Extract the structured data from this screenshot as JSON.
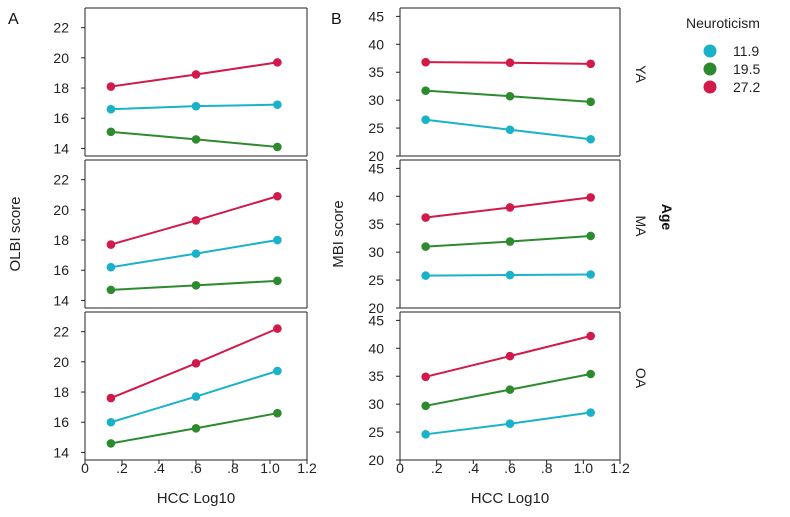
{
  "chart_data": {
    "type": "line",
    "xlabel": "HCC Log10",
    "x_ticks": [
      "0",
      ".2",
      ".4",
      ".6",
      ".8",
      "1.0",
      "1.2"
    ],
    "xlim": [
      0,
      1.2
    ],
    "x": [
      0.14,
      0.6,
      1.04
    ],
    "colors": {
      "11.9": "#1ab2c9",
      "19.5": "#2e8a2e",
      "27.2": "#d11a4a"
    },
    "legend": {
      "title": "Neuroticism",
      "entries": [
        "11.9",
        "19.5",
        "27.2"
      ]
    },
    "facet_label": "Age",
    "row_labels": [
      "YA",
      "MA",
      "OA"
    ],
    "panel_letters": [
      "A",
      "B"
    ],
    "panels": [
      {
        "letter": "A",
        "ylabel": "OLBI score",
        "ylim": [
          13.5,
          23.3
        ],
        "rows": [
          {
            "row": "YA",
            "y_ticks": [
              14,
              16,
              18,
              20,
              22
            ],
            "series": [
              {
                "name": "11.9",
                "values": [
                  16.6,
                  16.8,
                  16.9
                ]
              },
              {
                "name": "19.5",
                "values": [
                  15.1,
                  14.6,
                  14.1
                ]
              },
              {
                "name": "27.2",
                "values": [
                  18.1,
                  18.9,
                  19.7
                ]
              }
            ]
          },
          {
            "row": "MA",
            "y_ticks": [
              14,
              16,
              18,
              20,
              22
            ],
            "series": [
              {
                "name": "11.9",
                "values": [
                  16.2,
                  17.1,
                  18.0
                ]
              },
              {
                "name": "19.5",
                "values": [
                  14.7,
                  15.0,
                  15.3
                ]
              },
              {
                "name": "27.2",
                "values": [
                  17.7,
                  19.3,
                  20.9
                ]
              }
            ]
          },
          {
            "row": "OA",
            "y_ticks": [
              14,
              16,
              18,
              20,
              22
            ],
            "series": [
              {
                "name": "11.9",
                "values": [
                  16.0,
                  17.7,
                  19.4
                ]
              },
              {
                "name": "19.5",
                "values": [
                  14.6,
                  15.6,
                  16.6
                ]
              },
              {
                "name": "27.2",
                "values": [
                  17.6,
                  19.9,
                  22.2
                ]
              }
            ]
          }
        ]
      },
      {
        "letter": "B",
        "ylabel": "MBI score",
        "ylim": [
          20,
          46.5
        ],
        "rows": [
          {
            "row": "YA",
            "y_ticks": [
              20,
              25,
              30,
              35,
              40,
              45
            ],
            "series": [
              {
                "name": "11.9",
                "values": [
                  26.5,
                  24.7,
                  23.0
                ]
              },
              {
                "name": "19.5",
                "values": [
                  31.7,
                  30.7,
                  29.7
                ]
              },
              {
                "name": "27.2",
                "values": [
                  36.8,
                  36.7,
                  36.5
                ]
              }
            ]
          },
          {
            "row": "MA",
            "y_ticks": [
              20,
              25,
              30,
              35,
              40,
              45
            ],
            "series": [
              {
                "name": "11.9",
                "values": [
                  25.8,
                  25.9,
                  26.0
                ]
              },
              {
                "name": "19.5",
                "values": [
                  31.0,
                  31.9,
                  32.9
                ]
              },
              {
                "name": "27.2",
                "values": [
                  36.2,
                  38.0,
                  39.8
                ]
              }
            ]
          },
          {
            "row": "OA",
            "y_ticks": [
              20,
              25,
              30,
              35,
              40,
              45
            ],
            "series": [
              {
                "name": "11.9",
                "values": [
                  24.6,
                  26.5,
                  28.5
                ]
              },
              {
                "name": "19.5",
                "values": [
                  29.7,
                  32.6,
                  35.4
                ]
              },
              {
                "name": "27.2",
                "values": [
                  34.9,
                  38.6,
                  42.2
                ]
              }
            ]
          }
        ]
      }
    ]
  }
}
